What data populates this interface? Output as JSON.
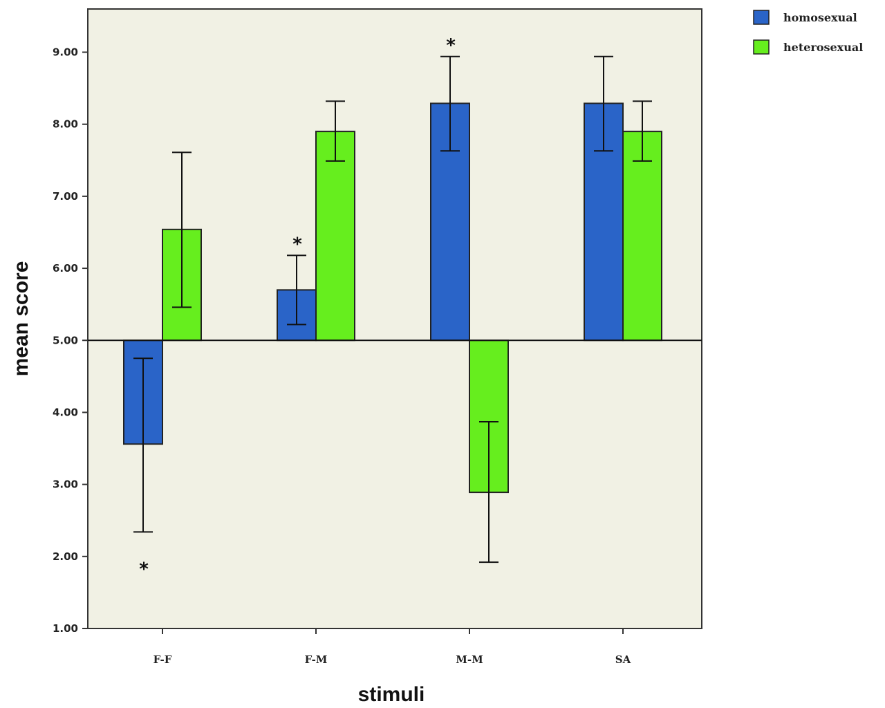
{
  "chart_data": {
    "type": "bar",
    "title": "",
    "xlabel": "stimuli",
    "ylabel": "mean  score",
    "ylim": [
      1,
      9.6
    ],
    "yticks": [
      1,
      2,
      3,
      4,
      5,
      6,
      7,
      8,
      9
    ],
    "ytick_labels": [
      "1.00",
      "2.00",
      "3.00",
      "4.00",
      "5.00",
      "6.00",
      "7.00",
      "8.00",
      "9.00"
    ],
    "baseline": 5,
    "grid": false,
    "legend_position": "top-right, outside plot",
    "categories": [
      "F-F",
      "F-M",
      "M-M",
      "SA"
    ],
    "series": [
      {
        "name": "homosexual",
        "color": "#2a64c8",
        "values": [
          3.56,
          5.7,
          8.29,
          8.29
        ],
        "error_low": [
          2.34,
          5.22,
          7.63,
          7.63
        ],
        "error_high": [
          4.75,
          6.18,
          8.94,
          8.94
        ],
        "significant": [
          true,
          true,
          true,
          false
        ]
      },
      {
        "name": "heterosexual",
        "color": "#66ee1e",
        "values": [
          6.54,
          7.9,
          2.89,
          7.9
        ],
        "error_low": [
          5.46,
          7.49,
          1.92,
          7.49
        ],
        "error_high": [
          7.61,
          8.32,
          3.87,
          8.32
        ],
        "significant": [
          false,
          false,
          false,
          false
        ]
      }
    ],
    "annotations": [
      {
        "text": "*",
        "category": "F-F",
        "series": "homosexual",
        "position": "below"
      },
      {
        "text": "*",
        "category": "F-M",
        "series": "homosexual",
        "position": "above"
      },
      {
        "text": "*",
        "category": "M-M",
        "series": "homosexual",
        "position": "above"
      }
    ]
  }
}
